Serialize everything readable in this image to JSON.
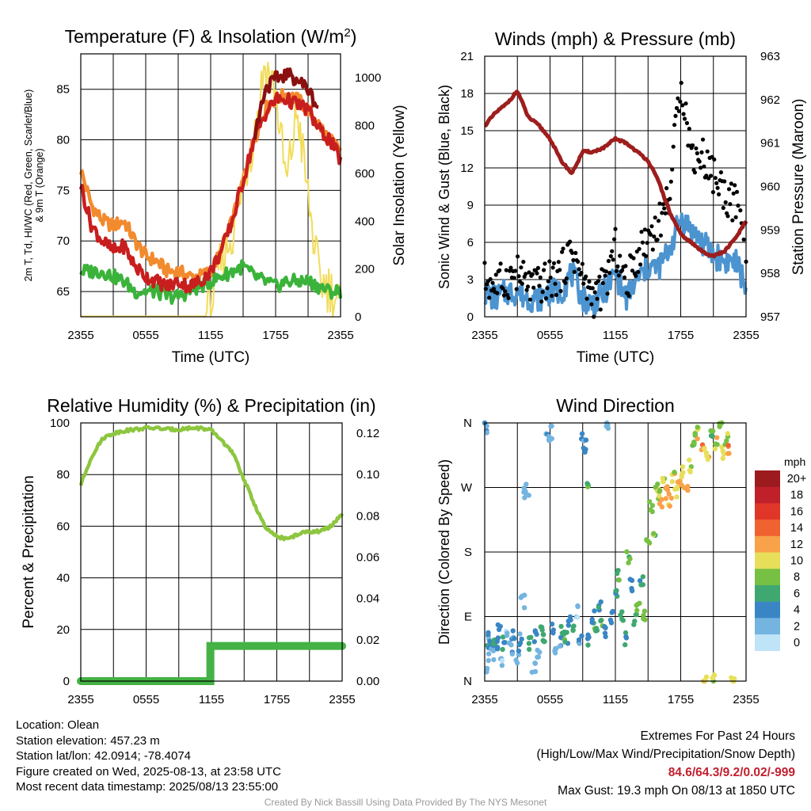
{
  "colors": {
    "temp": "#c81e1e",
    "dewpoint": "#3bb33b",
    "heat_index": "#8b1010",
    "temp_9m": "#f28a2e",
    "solar": "#f2dc5a",
    "wind": "#4c94d0",
    "gust": "#000000",
    "pressure": "#9e1d1d",
    "rh": "#8dc63f",
    "precip": "#44b244"
  },
  "chart_data": [
    {
      "id": "temp",
      "type": "line",
      "title": "Temperature (F) & Insolation (W/m²)",
      "xlabel": "Time (UTC)",
      "ylabel_lines": [
        "2m T, Td, HI/WC (Red, Green, Scarlet/Blue)",
        "& 9m T (Orange)"
      ],
      "y2label": "Solar Insolation (Yellow)",
      "x_ticks": [
        "2355",
        "0555",
        "1155",
        "1755",
        "2355"
      ],
      "ylim": [
        62.5,
        88.5
      ],
      "y_ticks": [
        65,
        70,
        75,
        80,
        85
      ],
      "y2lim": [
        0,
        1100
      ],
      "y2_ticks": [
        0,
        200,
        400,
        600,
        800,
        1000
      ],
      "x_hours": [
        0,
        1,
        2,
        3,
        4,
        5,
        6,
        7,
        8,
        9,
        10,
        11,
        12,
        13,
        14,
        15,
        16,
        17,
        18,
        19,
        20,
        21,
        22,
        23,
        24
      ],
      "series": [
        {
          "key": "temp_9m",
          "values": [
            77,
            73.5,
            72,
            71.5,
            72,
            70,
            68.5,
            68,
            67,
            67,
            66.5,
            66.5,
            67,
            69,
            72,
            76,
            80,
            83,
            84,
            84.5,
            84,
            83,
            81.5,
            80,
            79
          ]
        },
        {
          "key": "temp",
          "values": [
            75.5,
            71.5,
            70,
            69,
            69.5,
            67.5,
            66.5,
            66,
            65.5,
            66,
            65.5,
            66,
            67,
            69,
            72,
            76,
            80,
            82.5,
            84,
            84,
            83.5,
            83,
            81,
            80,
            78
          ]
        },
        {
          "key": "heat_index",
          "values": [
            null,
            null,
            null,
            null,
            null,
            null,
            null,
            null,
            null,
            null,
            null,
            null,
            null,
            null,
            null,
            null,
            80,
            85,
            86,
            86.5,
            86,
            85,
            83,
            null,
            null
          ]
        },
        {
          "key": "dewpoint",
          "values": [
            67,
            67,
            67,
            66.5,
            66,
            65,
            65,
            65,
            64.5,
            64.5,
            65,
            65.5,
            66,
            66.5,
            67,
            67.5,
            66.5,
            66,
            65.5,
            66,
            66,
            66,
            65.5,
            65,
            65
          ]
        },
        {
          "key": "solar",
          "axis": "y2",
          "values": [
            2,
            2,
            2,
            2,
            2,
            2,
            2,
            2,
            2,
            2,
            2,
            5,
            40,
            240,
            350,
            560,
            760,
            1060,
            940,
            550,
            870,
            500,
            160,
            120,
            50
          ]
        }
      ]
    },
    {
      "id": "wind",
      "type": "line",
      "title": "Winds (mph) & Pressure (mb)",
      "xlabel": "Time (UTC)",
      "ylabel": "Sonic Wind & Gust (Blue, Black)",
      "y2label": "Station Pressure (Maroon)",
      "x_ticks": [
        "2355",
        "0555",
        "1155",
        "1755",
        "2355"
      ],
      "ylim": [
        0,
        21
      ],
      "y_ticks": [
        0,
        3,
        6,
        9,
        12,
        15,
        18,
        21
      ],
      "y2lim": [
        957,
        963
      ],
      "y2_ticks": [
        957,
        958,
        959,
        960,
        961,
        962,
        963
      ],
      "x_hours": [
        0,
        1,
        2,
        3,
        4,
        5,
        6,
        7,
        8,
        9,
        10,
        11,
        12,
        13,
        14,
        15,
        16,
        17,
        18,
        19,
        20,
        21,
        22,
        23,
        24
      ],
      "series": [
        {
          "key": "wind",
          "values": [
            2,
            1.5,
            2,
            2,
            1.5,
            1.5,
            2,
            2,
            3.5,
            1.5,
            1,
            2,
            3.5,
            1.5,
            3,
            4,
            4,
            5.5,
            8,
            7,
            6,
            5,
            4.5,
            4.5,
            2.5
          ]
        },
        {
          "key": "gust",
          "style": "dots",
          "values": [
            3,
            2.5,
            3,
            3.5,
            2.5,
            2.5,
            3,
            3.5,
            5.5,
            3,
            1.5,
            2.5,
            5.5,
            2.5,
            5,
            6.5,
            7.5,
            10,
            19.3,
            13,
            13,
            11.5,
            10,
            9,
            6
          ]
        },
        {
          "key": "pressure",
          "axis": "y2",
          "values": [
            961.4,
            961.7,
            961.9,
            962.2,
            961.6,
            961.4,
            961.1,
            960.6,
            960.3,
            960.8,
            960.8,
            960.9,
            961.1,
            961.0,
            960.8,
            960.6,
            960.1,
            959.4,
            958.9,
            958.7,
            958.5,
            958.4,
            958.5,
            958.8,
            959.2
          ]
        }
      ]
    },
    {
      "id": "rh",
      "type": "line",
      "title": "Relative Humidity (%) & Precipitation (in)",
      "ylabel": "Percent & Precipitation",
      "x_ticks": [
        "2355",
        "0555",
        "1155",
        "1755",
        "2355"
      ],
      "ylim": [
        0,
        100
      ],
      "y_ticks": [
        0,
        20,
        40,
        60,
        80,
        100
      ],
      "y2lim": [
        0,
        0.125
      ],
      "y2_ticks": [
        "0.00",
        "0.02",
        "0.04",
        "0.06",
        "0.08",
        "0.10",
        "0.12"
      ],
      "x_hours": [
        0,
        1,
        2,
        3,
        4,
        5,
        6,
        7,
        8,
        9,
        10,
        11,
        12,
        13,
        14,
        15,
        16,
        17,
        18,
        19,
        20,
        21,
        22,
        23,
        24
      ],
      "series": [
        {
          "key": "rh",
          "values": [
            76,
            87,
            94,
            96,
            97,
            97.5,
            98,
            98,
            97.5,
            97.5,
            98,
            98,
            97,
            93,
            88,
            78,
            68,
            59,
            56,
            55,
            57,
            58,
            58,
            60,
            65
          ]
        },
        {
          "key": "precip",
          "axis": "y2",
          "values": [
            0,
            0,
            0,
            0,
            0,
            0,
            0,
            0,
            0,
            0,
            0,
            0,
            0.017,
            0.017,
            0.017,
            0.017,
            0.017,
            0.017,
            0.017,
            0.017,
            0.017,
            0.017,
            0.017,
            0.017,
            0.017
          ]
        }
      ]
    },
    {
      "id": "dir",
      "type": "scatter",
      "title": "Wind Direction",
      "ylabel": "Direction (Colored By Speed)",
      "x_ticks": [
        "2355",
        "0555",
        "1155",
        "1755",
        "2355"
      ],
      "y_ticks": [
        "N",
        "E",
        "S",
        "W",
        "N"
      ],
      "ylim": [
        0,
        360
      ],
      "points": [
        [
          0.1,
          350,
          1
        ],
        [
          0.2,
          20,
          1
        ],
        [
          0.3,
          60,
          2
        ],
        [
          0.5,
          45,
          2
        ],
        [
          0.7,
          40,
          1
        ],
        [
          0.9,
          55,
          3
        ],
        [
          1.1,
          50,
          2
        ],
        [
          1.3,
          70,
          2
        ],
        [
          1.5,
          30,
          1
        ],
        [
          1.8,
          55,
          3
        ],
        [
          2.1,
          60,
          1
        ],
        [
          2.4,
          45,
          1
        ],
        [
          2.6,
          70,
          2
        ],
        [
          3.0,
          35,
          1
        ],
        [
          3.3,
          60,
          2
        ],
        [
          3.5,
          110,
          1
        ],
        [
          3.7,
          260,
          1
        ],
        [
          3.9,
          270,
          1
        ],
        [
          4.2,
          50,
          3
        ],
        [
          4.5,
          20,
          1
        ],
        [
          4.7,
          65,
          2
        ],
        [
          5.0,
          40,
          1
        ],
        [
          5.2,
          75,
          3
        ],
        [
          5.5,
          55,
          3
        ],
        [
          5.8,
          345,
          1
        ],
        [
          6.0,
          345,
          1
        ],
        [
          6.3,
          70,
          2
        ],
        [
          6.6,
          40,
          1
        ],
        [
          6.9,
          55,
          2
        ],
        [
          7.2,
          75,
          3
        ],
        [
          7.5,
          60,
          3
        ],
        [
          7.8,
          80,
          2
        ],
        [
          8.2,
          70,
          3
        ],
        [
          8.5,
          95,
          1
        ],
        [
          8.8,
          60,
          2
        ],
        [
          9.0,
          335,
          2
        ],
        [
          9.2,
          330,
          2
        ],
        [
          9.4,
          280,
          3
        ],
        [
          9.6,
          60,
          2
        ],
        [
          9.9,
          90,
          2
        ],
        [
          10.2,
          65,
          3
        ],
        [
          10.5,
          100,
          2
        ],
        [
          10.8,
          80,
          3
        ],
        [
          11.0,
          70,
          2
        ],
        [
          11.3,
          355,
          1
        ],
        [
          11.6,
          90,
          2
        ],
        [
          12.0,
          120,
          3
        ],
        [
          12.3,
          150,
          3
        ],
        [
          12.6,
          95,
          3
        ],
        [
          12.9,
          60,
          3
        ],
        [
          13.2,
          170,
          4
        ],
        [
          13.5,
          135,
          2
        ],
        [
          13.8,
          85,
          3
        ],
        [
          14.1,
          100,
          4
        ],
        [
          14.4,
          140,
          3
        ],
        [
          14.7,
          95,
          4
        ],
        [
          15.0,
          190,
          4
        ],
        [
          15.3,
          240,
          4
        ],
        [
          15.5,
          205,
          4
        ],
        [
          15.8,
          270,
          5
        ],
        [
          16.0,
          265,
          4
        ],
        [
          16.2,
          250,
          6
        ],
        [
          16.5,
          280,
          5
        ],
        [
          16.7,
          265,
          6
        ],
        [
          17.0,
          255,
          6
        ],
        [
          17.3,
          285,
          5
        ],
        [
          17.6,
          265,
          5
        ],
        [
          17.9,
          280,
          6
        ],
        [
          18.2,
          295,
          5
        ],
        [
          18.5,
          270,
          6
        ],
        [
          18.8,
          300,
          5
        ],
        [
          19.1,
          330,
          4
        ],
        [
          19.4,
          340,
          4
        ],
        [
          19.7,
          345,
          5
        ],
        [
          20.0,
          330,
          6
        ],
        [
          20.2,
          5,
          5
        ],
        [
          20.5,
          320,
          5
        ],
        [
          20.8,
          345,
          4
        ],
        [
          21.0,
          0,
          5
        ],
        [
          21.3,
          330,
          5
        ],
        [
          21.6,
          355,
          4
        ],
        [
          21.9,
          320,
          5
        ],
        [
          22.2,
          340,
          4
        ],
        [
          22.5,
          320,
          6
        ],
        [
          22.8,
          2,
          5
        ]
      ],
      "legend": {
        "title": "mph",
        "labels": [
          "20+",
          "18",
          "16",
          "14",
          "12",
          "10",
          "8",
          "6",
          "4",
          "2",
          "0"
        ],
        "colors": [
          "#9b1b1e",
          "#c0202a",
          "#e03628",
          "#f06230",
          "#f8a24a",
          "#e7df5a",
          "#76c043",
          "#3fa870",
          "#3a86c4",
          "#74b4e0",
          "#bfe3f7"
        ]
      }
    }
  ],
  "info": {
    "location": "Location: Olean",
    "elevation": "Station elevation: 457.23 m",
    "latlon": "Station lat/lon: 42.0914; -78.4074",
    "created": "Figure created on Wed, 2025-08-13, at 23:58 UTC",
    "recent": "Most recent data timestamp: 2025/08/13 23:55:00",
    "extremes_title": "Extremes For Past 24 Hours",
    "extremes_fields": "(High/Low/Max Wind/Precipitation/Snow Depth)",
    "extremes_values": "84.6/64.3/9.2/0.02/-999",
    "max_gust": "Max Gust: 19.3 mph On 08/13 at 1850 UTC"
  },
  "credit": "Created By Nick Bassill Using Data Provided By The NYS Mesonet"
}
